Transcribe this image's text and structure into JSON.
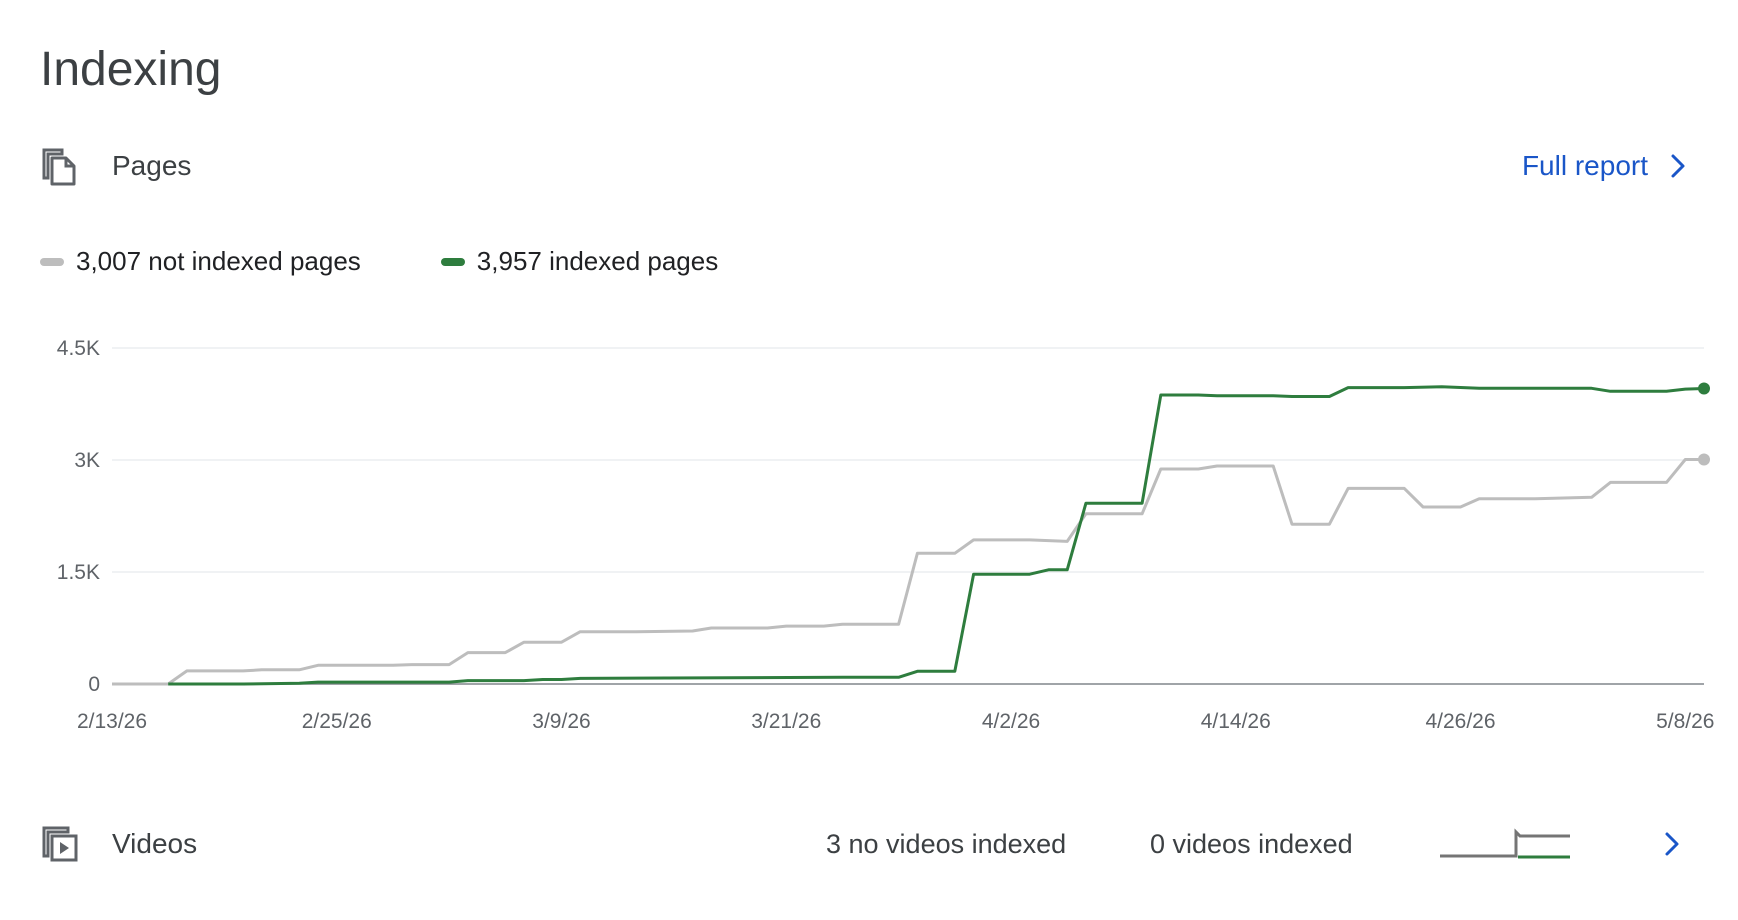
{
  "header": {
    "title": "Indexing"
  },
  "pages_section": {
    "label": "Pages",
    "icon": "pages-icon",
    "full_report_label": "Full report"
  },
  "legend": {
    "not_indexed_label": "3,007 not indexed pages",
    "indexed_label": "3,957 indexed pages"
  },
  "colors": {
    "not_indexed": "#bdbdbd",
    "indexed": "#2e7d3e",
    "link": "#1a56c8",
    "grid": "#e8eaed",
    "axis": "#80868b"
  },
  "chart_data": {
    "type": "line",
    "xlabel": "",
    "ylabel": "",
    "ylim": [
      0,
      4500
    ],
    "y_ticks": [
      {
        "value": 0,
        "label": "0"
      },
      {
        "value": 1500,
        "label": "1.5K"
      },
      {
        "value": 3000,
        "label": "3K"
      },
      {
        "value": 4500,
        "label": "4.5K"
      }
    ],
    "x_start": "2/13/26",
    "x_end": "5/9/26",
    "x_ticks": [
      "2/13/26",
      "2/25/26",
      "3/9/26",
      "3/21/26",
      "4/2/26",
      "4/14/26",
      "4/26/26",
      "5/8/26"
    ],
    "grid": true,
    "legend_position": "top-left",
    "series": [
      {
        "name": "3,007 not indexed pages",
        "color": "#bdbdbd",
        "points": [
          [
            "2/13/26",
            0
          ],
          [
            "2/16/26",
            0
          ],
          [
            "2/17/26",
            175
          ],
          [
            "2/20/26",
            175
          ],
          [
            "2/21/26",
            190
          ],
          [
            "2/23/26",
            190
          ],
          [
            "2/24/26",
            250
          ],
          [
            "2/28/26",
            250
          ],
          [
            "3/1/26",
            260
          ],
          [
            "3/3/26",
            260
          ],
          [
            "3/4/26",
            420
          ],
          [
            "3/6/26",
            420
          ],
          [
            "3/7/26",
            560
          ],
          [
            "3/8/26",
            560
          ],
          [
            "3/9/26",
            560
          ],
          [
            "3/10/26",
            700
          ],
          [
            "3/13/26",
            700
          ],
          [
            "3/16/26",
            710
          ],
          [
            "3/17/26",
            750
          ],
          [
            "3/20/26",
            750
          ],
          [
            "3/21/26",
            775
          ],
          [
            "3/23/26",
            775
          ],
          [
            "3/24/26",
            800
          ],
          [
            "3/27/26",
            800
          ],
          [
            "3/28/26",
            1750
          ],
          [
            "3/30/26",
            1750
          ],
          [
            "3/31/26",
            1930
          ],
          [
            "4/3/26",
            1930
          ],
          [
            "4/5/26",
            1910
          ],
          [
            "4/6/26",
            2280
          ],
          [
            "4/9/26",
            2280
          ],
          [
            "4/10/26",
            2880
          ],
          [
            "4/12/26",
            2880
          ],
          [
            "4/13/26",
            2920
          ],
          [
            "4/15/26",
            2920
          ],
          [
            "4/16/26",
            2920
          ],
          [
            "4/17/26",
            2140
          ],
          [
            "4/19/26",
            2140
          ],
          [
            "4/20/26",
            2620
          ],
          [
            "4/23/26",
            2620
          ],
          [
            "4/24/26",
            2370
          ],
          [
            "4/26/26",
            2370
          ],
          [
            "4/27/26",
            2480
          ],
          [
            "4/30/26",
            2480
          ],
          [
            "5/3/26",
            2500
          ],
          [
            "5/4/26",
            2700
          ],
          [
            "5/7/26",
            2700
          ],
          [
            "5/8/26",
            3007
          ],
          [
            "5/9/26",
            3007
          ]
        ]
      },
      {
        "name": "3,957 indexed pages",
        "color": "#2e7d3e",
        "points": [
          [
            "2/16/26",
            0
          ],
          [
            "2/20/26",
            0
          ],
          [
            "2/23/26",
            10
          ],
          [
            "2/24/26",
            25
          ],
          [
            "3/3/26",
            25
          ],
          [
            "3/4/26",
            45
          ],
          [
            "3/7/26",
            45
          ],
          [
            "3/8/26",
            60
          ],
          [
            "3/9/26",
            60
          ],
          [
            "3/10/26",
            75
          ],
          [
            "3/24/26",
            90
          ],
          [
            "3/27/26",
            90
          ],
          [
            "3/28/26",
            170
          ],
          [
            "3/30/26",
            170
          ],
          [
            "3/31/26",
            1470
          ],
          [
            "4/3/26",
            1470
          ],
          [
            "4/4/26",
            1530
          ],
          [
            "4/5/26",
            1530
          ],
          [
            "4/6/26",
            2420
          ],
          [
            "4/9/26",
            2420
          ],
          [
            "4/10/26",
            3870
          ],
          [
            "4/12/26",
            3870
          ],
          [
            "4/13/26",
            3860
          ],
          [
            "4/16/26",
            3860
          ],
          [
            "4/17/26",
            3850
          ],
          [
            "4/19/26",
            3850
          ],
          [
            "4/20/26",
            3970
          ],
          [
            "4/23/26",
            3970
          ],
          [
            "4/25/26",
            3980
          ],
          [
            "4/27/26",
            3960
          ],
          [
            "5/3/26",
            3960
          ],
          [
            "5/4/26",
            3920
          ],
          [
            "5/7/26",
            3920
          ],
          [
            "5/8/26",
            3950
          ],
          [
            "5/9/26",
            3957
          ]
        ]
      }
    ]
  },
  "videos_section": {
    "label": "Videos",
    "icon": "videos-icon",
    "no_videos_indexed_label": "3 no videos indexed",
    "videos_indexed_label": "0 videos indexed"
  }
}
